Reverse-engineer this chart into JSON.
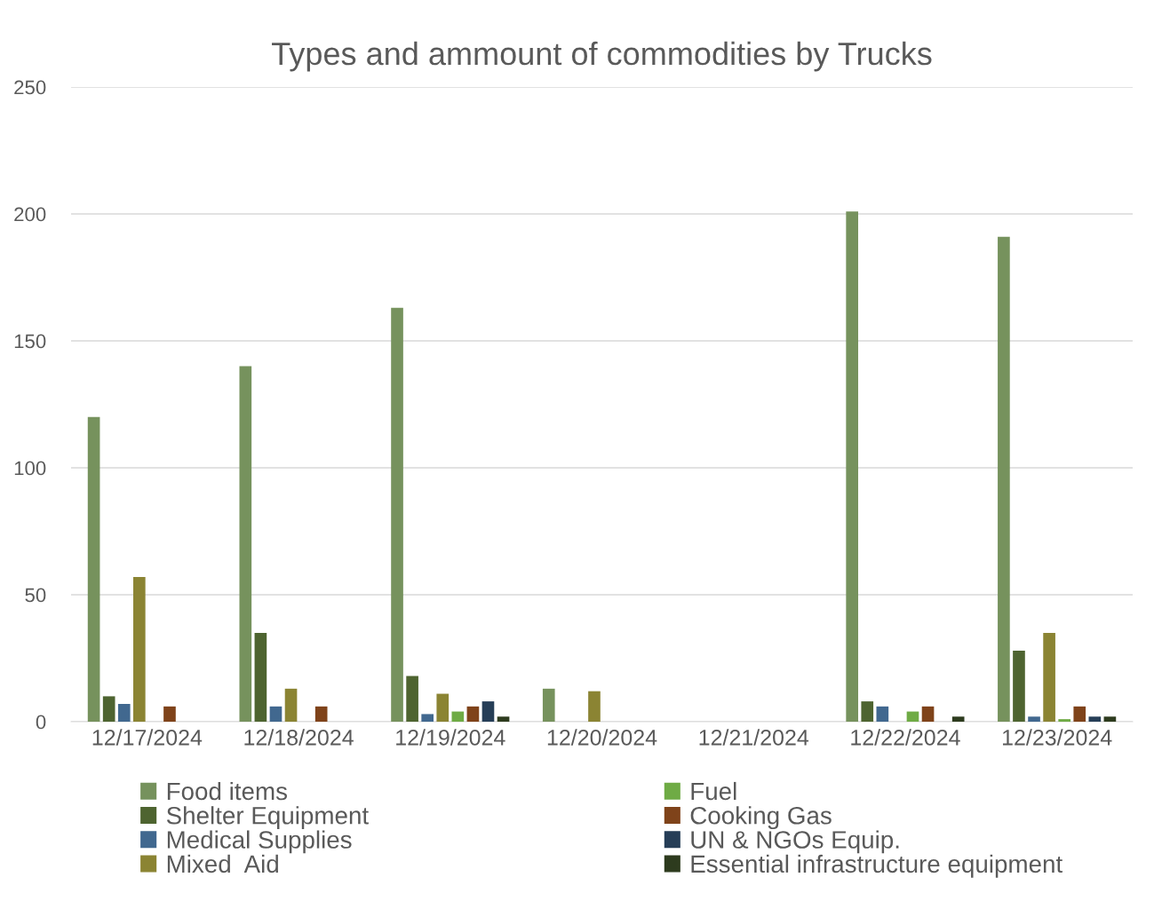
{
  "chart_data": {
    "type": "bar",
    "title": "Types and ammount of commodities by Trucks",
    "categories": [
      "12/17/2024",
      "12/18/2024",
      "12/19/2024",
      "12/20/2024",
      "12/21/2024",
      "12/22/2024",
      "12/23/2024"
    ],
    "series": [
      {
        "name": "Food items",
        "color": "#76925d",
        "values": [
          120,
          140,
          163,
          13,
          null,
          201,
          191
        ]
      },
      {
        "name": "Shelter Equipment",
        "color": "#4e6430",
        "values": [
          10,
          35,
          18,
          null,
          null,
          8,
          28
        ]
      },
      {
        "name": "Medical Supplies",
        "color": "#41688f",
        "values": [
          7,
          6,
          3,
          null,
          null,
          6,
          2
        ]
      },
      {
        "name": "Mixed  Aid",
        "color": "#8b8433",
        "values": [
          57,
          13,
          11,
          12,
          null,
          null,
          35
        ]
      },
      {
        "name": "Fuel",
        "color": "#6fab45",
        "values": [
          null,
          null,
          4,
          null,
          null,
          4,
          1
        ]
      },
      {
        "name": "Cooking Gas",
        "color": "#7f431a",
        "values": [
          6,
          6,
          6,
          null,
          null,
          6,
          6
        ]
      },
      {
        "name": "UN & NGOs Equip.",
        "color": "#263e57",
        "values": [
          null,
          null,
          8,
          null,
          null,
          null,
          2
        ]
      },
      {
        "name": "Essential infrastructure equipment",
        "color": "#2d3b1e",
        "values": [
          null,
          null,
          2,
          null,
          null,
          2,
          2
        ]
      }
    ],
    "ylim": [
      0,
      250
    ],
    "yticks": [
      0,
      50,
      100,
      150,
      200,
      250
    ],
    "grid": "y",
    "legend": "bottom"
  }
}
